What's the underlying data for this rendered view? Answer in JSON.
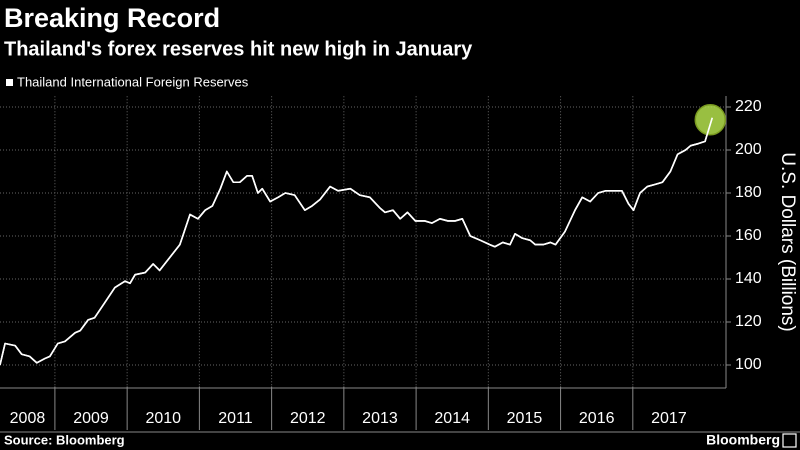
{
  "chart_data": {
    "type": "line",
    "title": "Breaking Record",
    "subtitle": "Thailand's forex reserves hit new high in January",
    "y_axis_label": "U.S. Dollars (Billions)",
    "source": "Source: Bloomberg",
    "brand": "Bloomberg",
    "xlim": [
      2008.24,
      2018.29
    ],
    "xticks": [
      2008,
      2009,
      2010,
      2011,
      2012,
      2013,
      2014,
      2015,
      2016,
      2017
    ],
    "ylim": [
      90,
      225
    ],
    "yticks": [
      100,
      120,
      140,
      160,
      180,
      200,
      220
    ],
    "grid": true,
    "highlight_color": "#b4e04c",
    "series": [
      {
        "name": "Thailand International Foreign Reserves",
        "color": "#ffffff",
        "x": [
          2008.24,
          2008.31,
          2008.45,
          2008.54,
          2008.65,
          2008.75,
          2008.86,
          2008.93,
          2009.04,
          2009.14,
          2009.28,
          2009.35,
          2009.46,
          2009.55,
          2009.69,
          2009.83,
          2009.97,
          2010.04,
          2010.11,
          2010.25,
          2010.36,
          2010.45,
          2010.59,
          2010.73,
          2010.87,
          2010.98,
          2011.08,
          2011.18,
          2011.29,
          2011.38,
          2011.47,
          2011.56,
          2011.66,
          2011.73,
          2011.81,
          2011.87,
          2011.98,
          2012.09,
          2012.19,
          2012.32,
          2012.46,
          2012.56,
          2012.67,
          2012.81,
          2012.92,
          2013.09,
          2013.22,
          2013.36,
          2013.5,
          2013.57,
          2013.68,
          2013.78,
          2013.88,
          2013.99,
          2014.12,
          2014.22,
          2014.33,
          2014.44,
          2014.54,
          2014.64,
          2014.75,
          2014.89,
          2015.02,
          2015.09,
          2015.2,
          2015.3,
          2015.37,
          2015.47,
          2015.58,
          2015.65,
          2015.76,
          2015.86,
          2015.93,
          2016.06,
          2016.2,
          2016.3,
          2016.41,
          2016.52,
          2016.62,
          2016.76,
          2016.85,
          2016.94,
          2017.01,
          2017.1,
          2017.2,
          2017.31,
          2017.41,
          2017.52,
          2017.62,
          2017.73,
          2017.8,
          2017.91,
          2018.0,
          2018.1
        ],
        "values": [
          100,
          110,
          109,
          105,
          104,
          101,
          103,
          104,
          110,
          111,
          115,
          116,
          121,
          122,
          129,
          136,
          139,
          138,
          142,
          143,
          147,
          144,
          150,
          156,
          170,
          168,
          172,
          174,
          182,
          190,
          185,
          185,
          188,
          188,
          180,
          182,
          176,
          178,
          180,
          179,
          172,
          174,
          177,
          183,
          181,
          182,
          179,
          178,
          173,
          171,
          172,
          168,
          171,
          167,
          167,
          166,
          168,
          167,
          167,
          168,
          160,
          158,
          156,
          155,
          157,
          156,
          161,
          159,
          158,
          156,
          156,
          157,
          156,
          162,
          172,
          178,
          176,
          180,
          181,
          181,
          181,
          175,
          172,
          180,
          183,
          184,
          185,
          190,
          198,
          200,
          202,
          203,
          204,
          215
        ]
      }
    ]
  }
}
